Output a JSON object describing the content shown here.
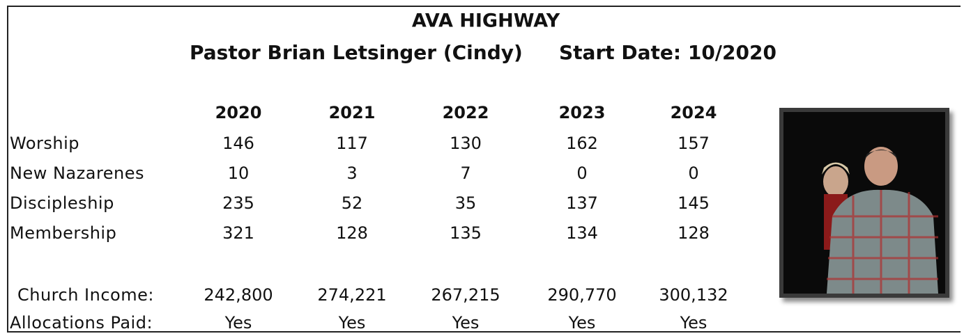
{
  "header": {
    "title": "AVA HIGHWAY",
    "pastor": "Pastor Brian Letsinger (Cindy)",
    "start_date": "Start Date: 10/2020"
  },
  "table": {
    "columns": [
      "2020",
      "2021",
      "2022",
      "2023",
      "2024"
    ],
    "rows": [
      {
        "label": "Worship",
        "cells": [
          "146",
          "117",
          "130",
          "162",
          "157"
        ]
      },
      {
        "label": "New Nazarenes",
        "cells": [
          "10",
          "3",
          "7",
          "0",
          "0"
        ]
      },
      {
        "label": "Discipleship",
        "cells": [
          "235",
          "52",
          "35",
          "137",
          "145"
        ]
      },
      {
        "label": "Membership",
        "cells": [
          "321",
          "128",
          "135",
          "134",
          "128"
        ]
      },
      {
        "label": "Church Income:",
        "cells": [
          "242,800",
          "274,221",
          "267,215",
          "290,770",
          "300,132"
        ]
      },
      {
        "label": "Allocations Paid:",
        "cells": [
          "Yes",
          "Yes",
          "Yes",
          "Yes",
          "Yes"
        ]
      }
    ]
  }
}
